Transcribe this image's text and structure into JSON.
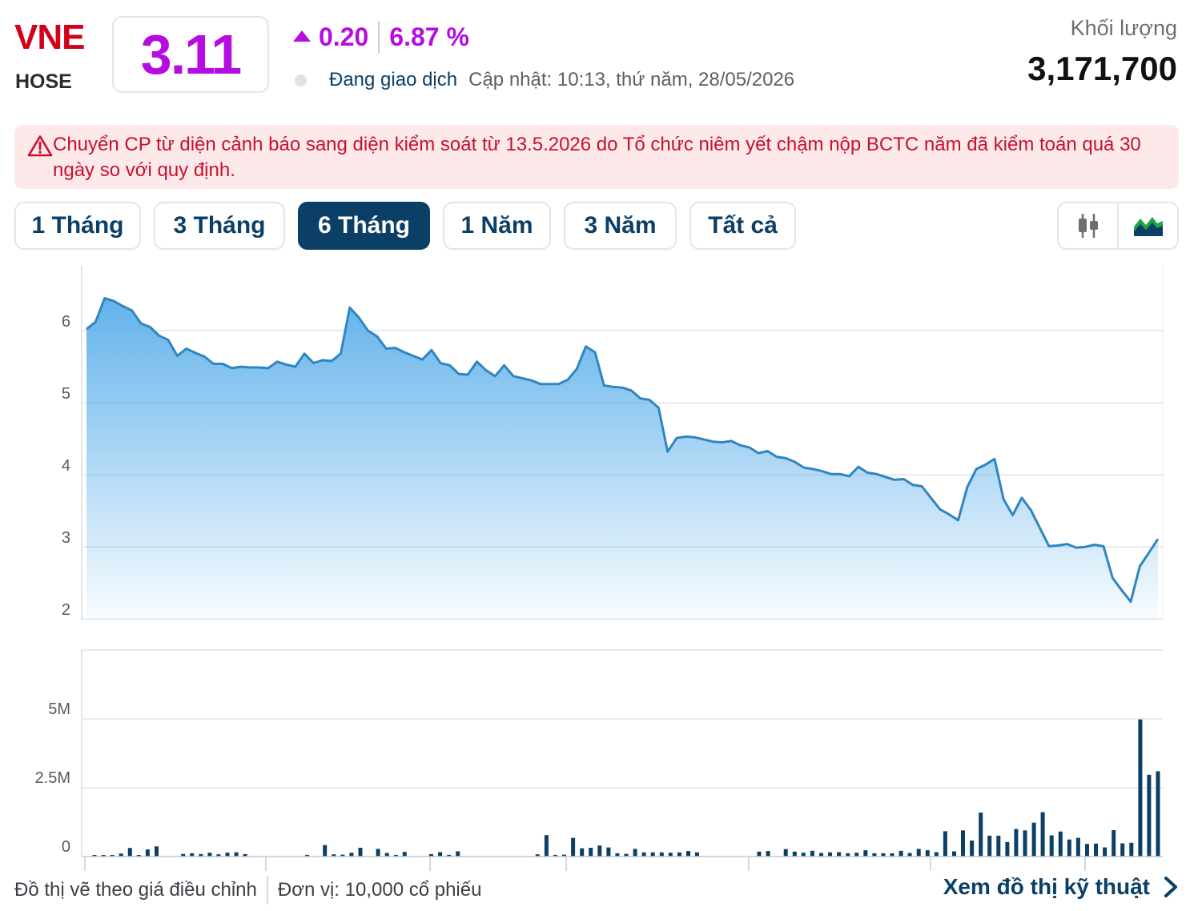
{
  "header": {
    "symbol": "VNE",
    "exchange": "HOSE",
    "price": "3.11",
    "change": "0.20",
    "change_pct": "6.87 %",
    "status": "Đang giao dịch",
    "updated": "Cập nhật: 10:13, thứ năm, 28/05/2026",
    "volume_label": "Khối lượng",
    "volume_value": "3,171,700"
  },
  "alert": {
    "text": "Chuyển CP từ diện cảnh báo sang diện kiểm soát từ 13.5.2026 do Tổ chức niêm yết chậm nộp BCTC năm đã kiểm toán quá 30 ngày so với quy định."
  },
  "tabs": [
    {
      "label": "1 Tháng"
    },
    {
      "label": "3 Tháng"
    },
    {
      "label": "6 Tháng"
    },
    {
      "label": "1 Năm"
    },
    {
      "label": "3 Năm"
    },
    {
      "label": "Tất cả"
    }
  ],
  "active_tab": "6 Tháng",
  "chart_toggle": {
    "options": [
      "candlestick-icon",
      "area-chart-icon"
    ],
    "selected": "area-chart-icon"
  },
  "colors": {
    "up": "#b50ce0",
    "ticker": "#d0021b",
    "navy": "#0b3f66",
    "line": "#2e86c1",
    "alert_bg": "#fde9ea",
    "alert_text": "#c8102e"
  },
  "chart_data": [
    {
      "type": "area",
      "title": "",
      "ylim": [
        1.98,
        6.9
      ],
      "yticks": [
        2,
        3,
        4,
        5,
        6
      ],
      "grid": true,
      "series": [
        {
          "values": [
            6.02,
            6.12,
            6.45,
            6.41,
            6.34,
            6.28,
            6.1,
            6.05,
            5.93,
            5.87,
            5.65,
            5.75,
            5.69,
            5.64,
            5.54,
            5.54,
            5.48,
            5.5,
            5.49,
            5.49,
            5.48,
            5.57,
            5.53,
            5.5,
            5.68,
            5.55,
            5.59,
            5.58,
            5.68,
            6.32,
            6.18,
            6.0,
            5.92,
            5.75,
            5.76,
            5.7,
            5.65,
            5.6,
            5.73,
            5.55,
            5.52,
            5.4,
            5.39,
            5.57,
            5.45,
            5.37,
            5.52,
            5.37,
            5.34,
            5.31,
            5.26,
            5.26,
            5.26,
            5.32,
            5.47,
            5.78,
            5.7,
            5.24,
            5.22,
            5.21,
            5.17,
            5.06,
            5.04,
            4.93,
            4.32,
            4.51,
            4.53,
            4.52,
            4.49,
            4.46,
            4.45,
            4.47,
            4.41,
            4.38,
            4.3,
            4.33,
            4.25,
            4.23,
            4.18,
            4.1,
            4.08,
            4.05,
            4.01,
            4.01,
            3.98,
            4.11,
            4.03,
            4.01,
            3.97,
            3.93,
            3.94,
            3.86,
            3.84,
            3.68,
            3.52,
            3.45,
            3.37,
            3.83,
            4.08,
            4.14,
            4.22,
            3.66,
            3.44,
            3.68,
            3.51,
            3.26,
            3.01,
            3.02,
            3.04,
            2.99,
            3.0,
            3.03,
            3.01,
            2.57,
            2.4,
            2.24,
            2.73,
            2.92,
            3.11
          ]
        }
      ]
    },
    {
      "type": "bar",
      "title": "",
      "ylim": [
        0,
        7500000
      ],
      "yticks": [
        0,
        2500000,
        5000000
      ],
      "ytick_labels": [
        "0",
        "2.5M",
        "5M"
      ],
      "grid": true,
      "series": [
        {
          "values": [
            35000,
            40000,
            30000,
            110000,
            310000,
            35000,
            260000,
            370000,
            0,
            0,
            95000,
            120000,
            90000,
            140000,
            80000,
            140000,
            155000,
            90000,
            0,
            0,
            0,
            0,
            0,
            0,
            60000,
            0,
            420000,
            80000,
            70000,
            140000,
            320000,
            0,
            280000,
            130000,
            60000,
            170000,
            0,
            0,
            90000,
            160000,
            60000,
            190000,
            0,
            0,
            0,
            0,
            0,
            0,
            0,
            0,
            80000,
            780000,
            60000,
            70000,
            680000,
            300000,
            320000,
            400000,
            330000,
            120000,
            100000,
            280000,
            150000,
            150000,
            150000,
            140000,
            150000,
            200000,
            150000,
            0,
            0,
            0,
            0,
            0,
            0,
            180000,
            200000,
            0,
            270000,
            180000,
            140000,
            210000,
            130000,
            150000,
            160000,
            120000,
            140000,
            230000,
            120000,
            120000,
            120000,
            210000,
            130000,
            280000,
            230000,
            160000,
            920000,
            190000,
            950000,
            580000,
            1600000,
            760000,
            760000,
            530000,
            1000000,
            950000,
            1230000,
            1610000,
            770000,
            910000,
            620000,
            680000,
            460000,
            470000,
            330000,
            960000,
            480000,
            500000,
            4980000,
            2970000,
            3100000
          ]
        }
      ]
    }
  ],
  "footer": {
    "note": "Đồ thị vẽ theo giá điều chỉnh",
    "unit": "Đơn vị: 10,000 cổ phiếu",
    "link": "Xem đồ thị kỹ thuật"
  }
}
